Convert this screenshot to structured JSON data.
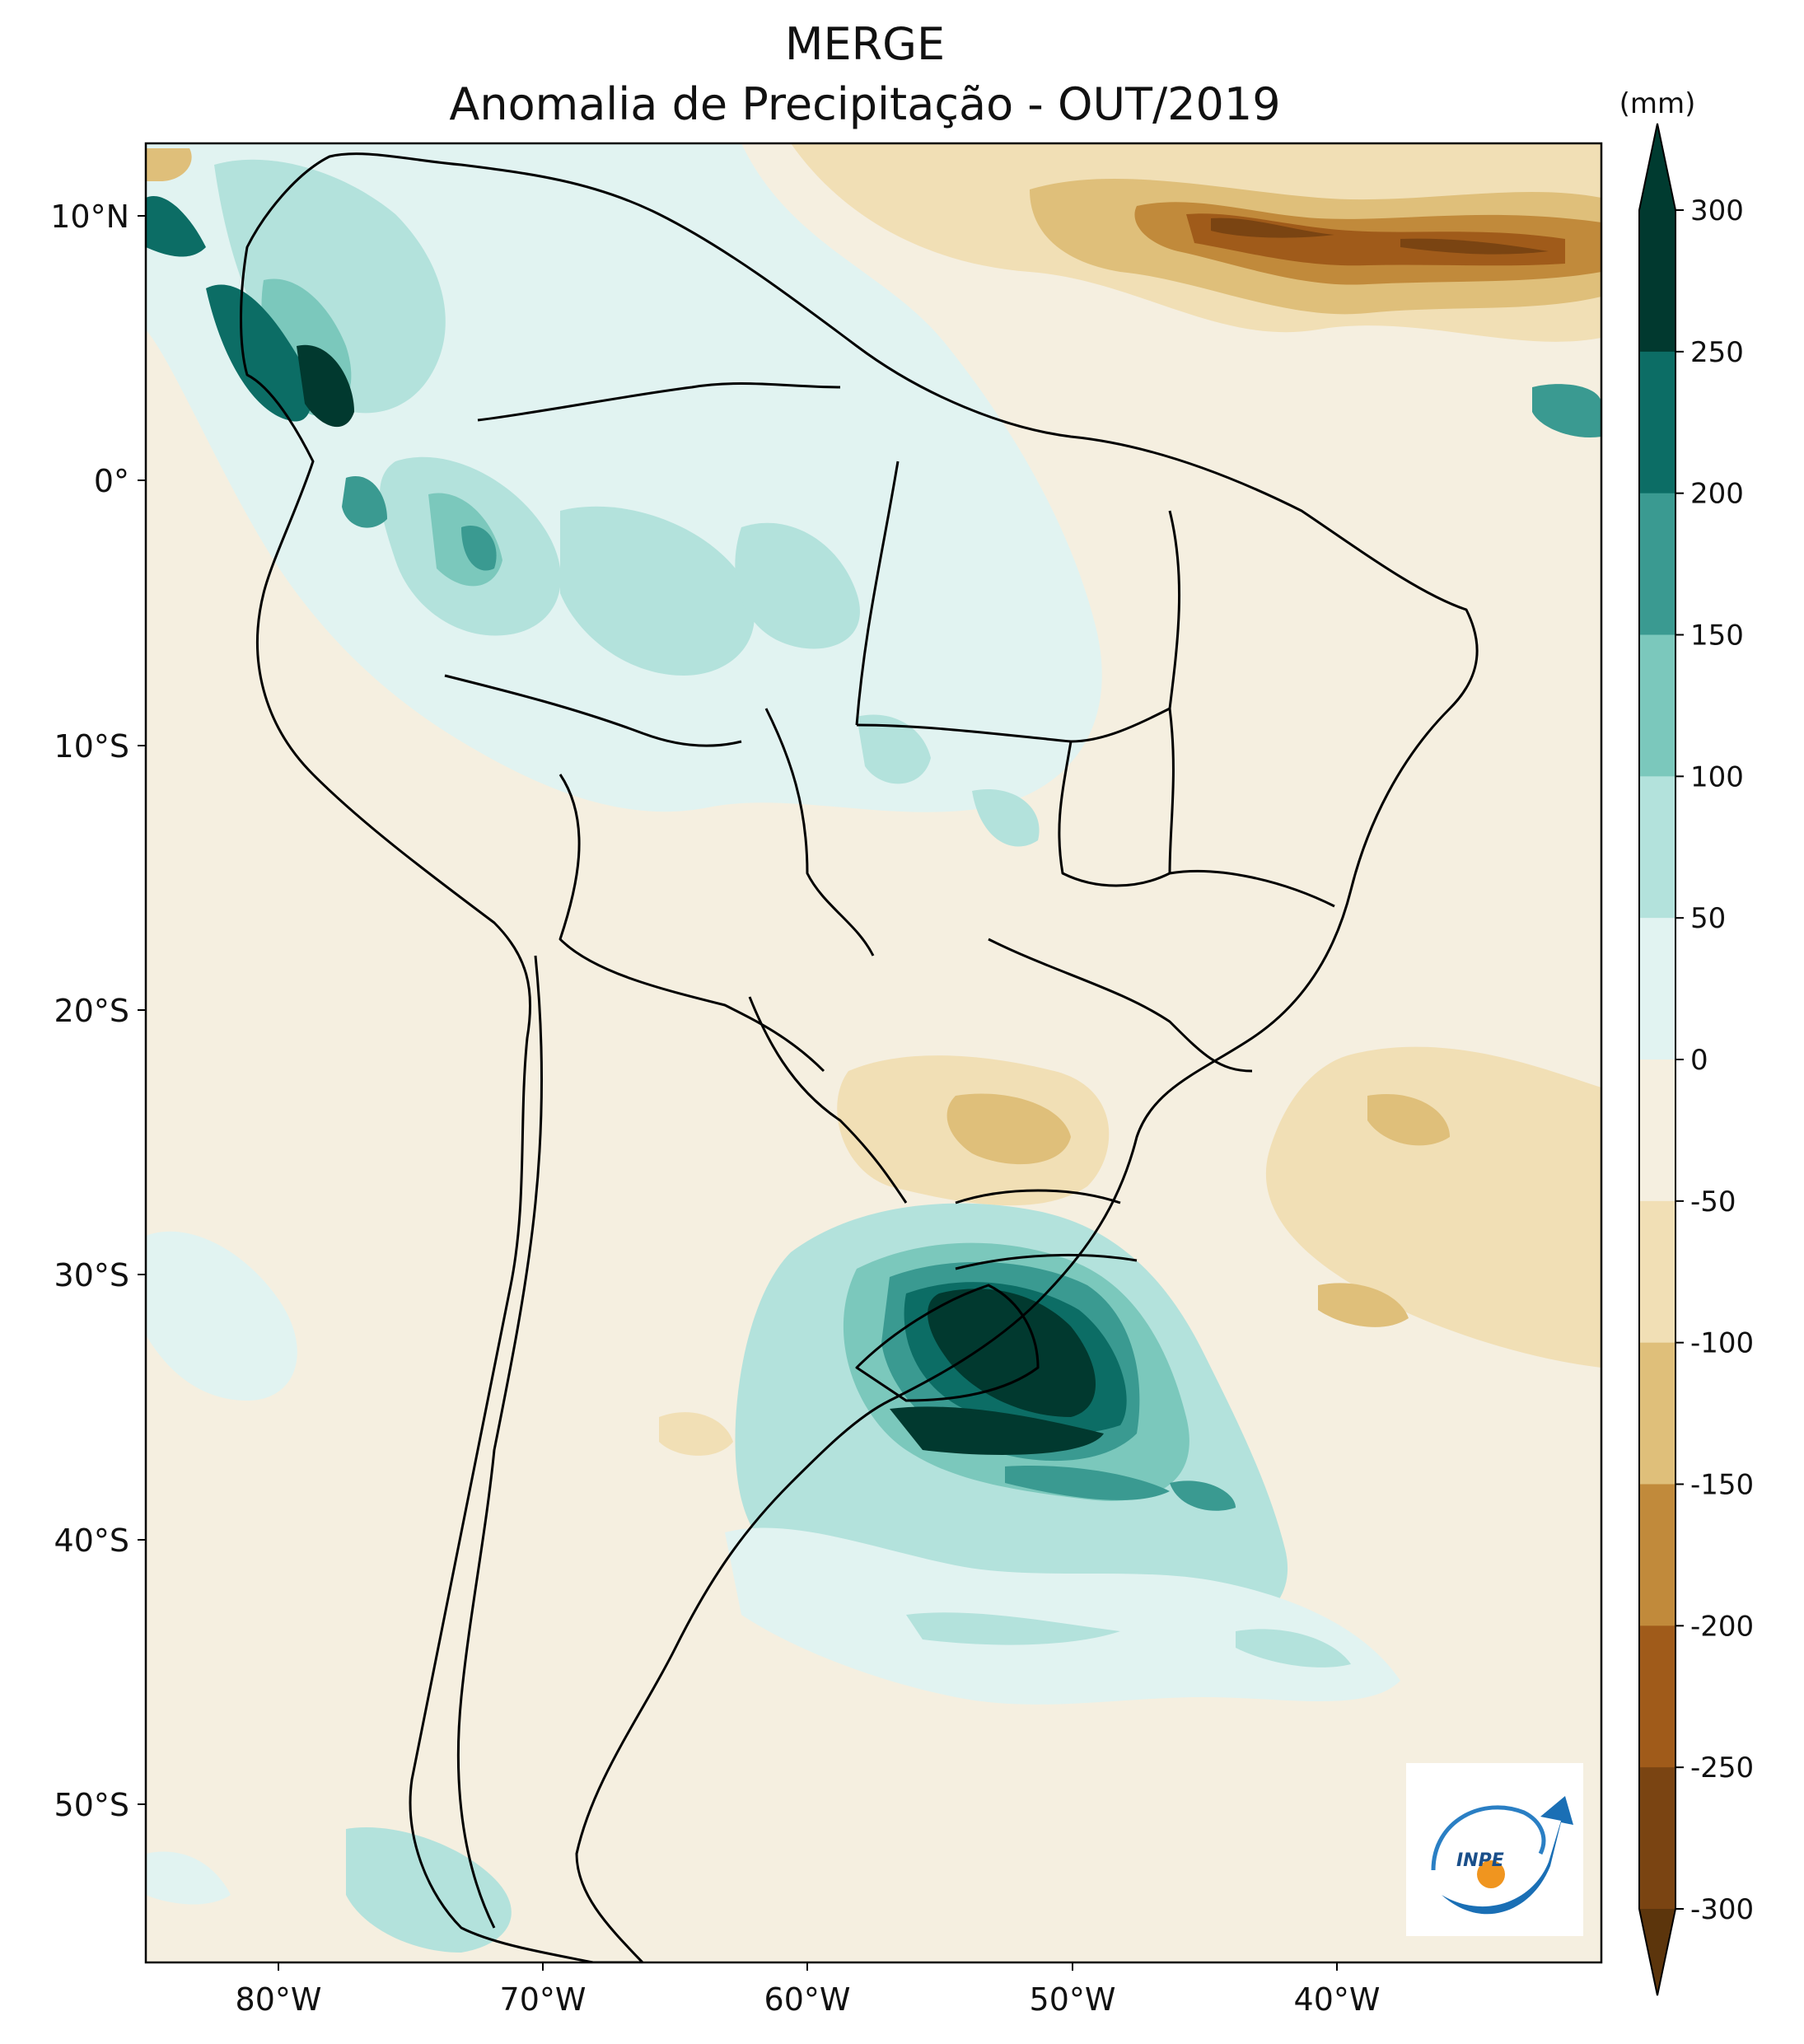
{
  "title": {
    "line1": "MERGE",
    "line2": "Anomalia de Precipitação - OUT/2019"
  },
  "map": {
    "region": "South America",
    "lat_ticks": [
      "10°N",
      "0°",
      "10°S",
      "20°S",
      "30°S",
      "40°S",
      "50°S"
    ],
    "lon_ticks": [
      "80°W",
      "70°W",
      "60°W",
      "50°W",
      "40°W"
    ],
    "lat_values": [
      10,
      0,
      -10,
      -20,
      -30,
      -40,
      -50
    ],
    "lon_values": [
      -80,
      -70,
      -60,
      -50,
      -40
    ],
    "extent": {
      "lon_min": -85,
      "lon_max": -30,
      "lat_min": -56,
      "lat_max": 12.5
    }
  },
  "colorbar": {
    "unit": "(mm)",
    "labels": [
      "300",
      "250",
      "200",
      "150",
      "100",
      "50",
      "0",
      "-50",
      "-100",
      "-150",
      "-200",
      "-250",
      "-300"
    ],
    "levels": [
      300,
      250,
      200,
      150,
      100,
      50,
      0,
      -50,
      -100,
      -150,
      -200,
      -250,
      -300
    ],
    "colors": [
      "#01392f",
      "#0c6d65",
      "#3a9a91",
      "#7bc8bc",
      "#b3e2dc",
      "#e1f3f1",
      "#f5efe0",
      "#f1dfb5",
      "#dfbf7a",
      "#c18a3b",
      "#a05b1a",
      "#7a4412"
    ],
    "extend_top_color": "#003b30",
    "extend_bottom_color": "#5c350c"
  },
  "logo": {
    "text": "INPE"
  }
}
